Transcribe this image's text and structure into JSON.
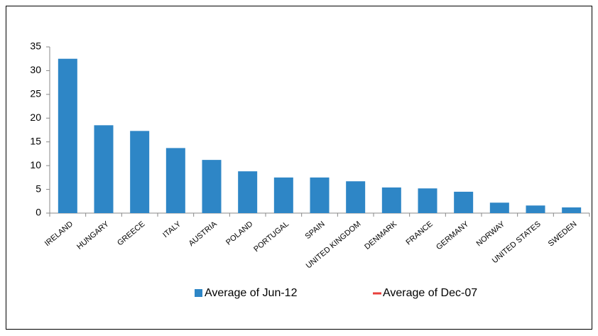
{
  "chart_data": {
    "type": "bar",
    "categories": [
      "IRELAND",
      "HUNGARY",
      "GREECE",
      "ITALY",
      "AUSTRIA",
      "POLAND",
      "PORTUGAL",
      "SPAIN",
      "UNITED KINGDOM",
      "DENMARK",
      "FRANCE",
      "GERMANY",
      "NORWAY",
      "UNITED STATES",
      "SWEDEN"
    ],
    "series": [
      {
        "name": "Average of Jun-12",
        "color": "#2e86c6",
        "values": [
          32.5,
          18.5,
          17.3,
          13.7,
          11.2,
          8.8,
          7.5,
          7.5,
          6.7,
          5.4,
          5.2,
          4.5,
          2.2,
          1.6,
          1.2
        ]
      },
      {
        "name": "Average of Dec-07",
        "color": "#e8403c",
        "type": "line",
        "values": [
          null,
          null,
          null,
          null,
          null,
          null,
          null,
          null,
          null,
          null,
          null,
          null,
          null,
          null,
          null
        ]
      }
    ],
    "ylim": [
      0,
      35
    ],
    "yticks": [
      0,
      5,
      10,
      15,
      20,
      25,
      30,
      35
    ],
    "legend": "bottom"
  }
}
